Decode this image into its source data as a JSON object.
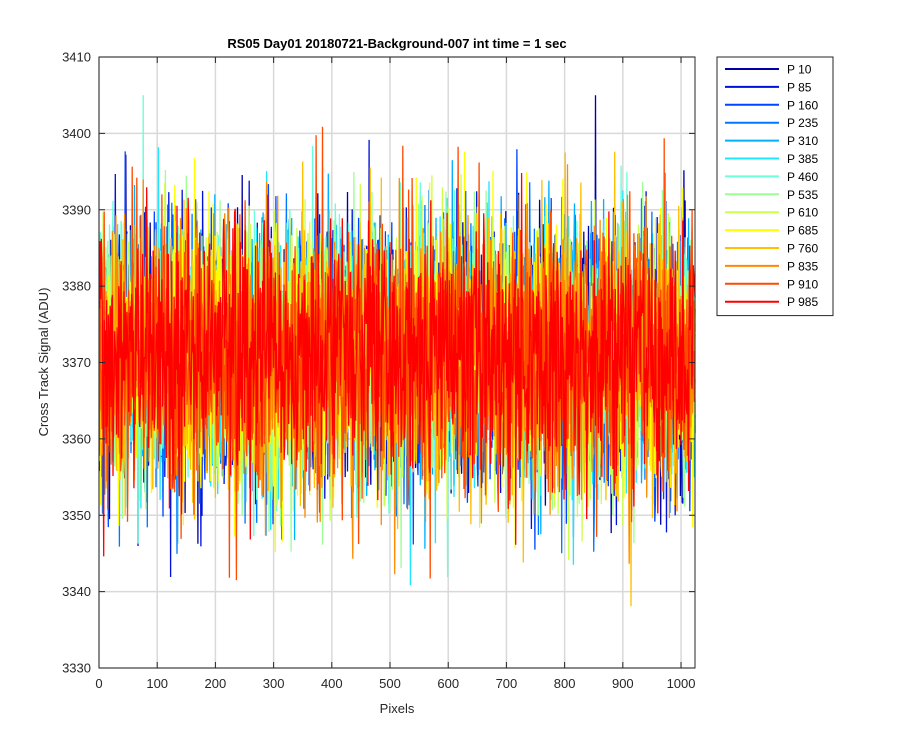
{
  "chart_data": {
    "type": "line",
    "title": "RS05 Day01 20180721-Background-007 int time = 1 sec",
    "xlabel": "Pixels",
    "ylabel": "Cross Track Signal (ADU)",
    "xlim": [
      0,
      1024
    ],
    "ylim": [
      3330,
      3410
    ],
    "xticks": [
      0,
      100,
      200,
      300,
      400,
      500,
      600,
      700,
      800,
      900,
      1000
    ],
    "yticks": [
      3330,
      3340,
      3350,
      3360,
      3370,
      3380,
      3390,
      3400,
      3410
    ],
    "grid": true,
    "legend_position": "outside-top-right",
    "signal_summary": {
      "n_points_per_series": 1024,
      "typical_mean": 3371,
      "typical_band": [
        3355,
        3392
      ],
      "observed_min": 3335,
      "observed_max": 3405
    },
    "series": [
      {
        "name": "P 10",
        "color": "#0000a6",
        "seed": 11
      },
      {
        "name": "P 85",
        "color": "#0012d9",
        "seed": 23
      },
      {
        "name": "P 160",
        "color": "#0045ff",
        "seed": 37
      },
      {
        "name": "P 235",
        "color": "#0078ff",
        "seed": 41
      },
      {
        "name": "P 310",
        "color": "#00b0ff",
        "seed": 53
      },
      {
        "name": "P 385",
        "color": "#1ee6ff",
        "seed": 67
      },
      {
        "name": "P 460",
        "color": "#6affd6",
        "seed": 71
      },
      {
        "name": "P 535",
        "color": "#9cff96",
        "seed": 83
      },
      {
        "name": "P 610",
        "color": "#ccff4a",
        "seed": 97
      },
      {
        "name": "P 685",
        "color": "#ffff00",
        "seed": 101
      },
      {
        "name": "P 760",
        "color": "#ffc000",
        "seed": 113
      },
      {
        "name": "P 835",
        "color": "#ff8a00",
        "seed": 127
      },
      {
        "name": "P 910",
        "color": "#ff4a00",
        "seed": 131
      },
      {
        "name": "P 985",
        "color": "#ff0000",
        "seed": 149
      }
    ]
  }
}
